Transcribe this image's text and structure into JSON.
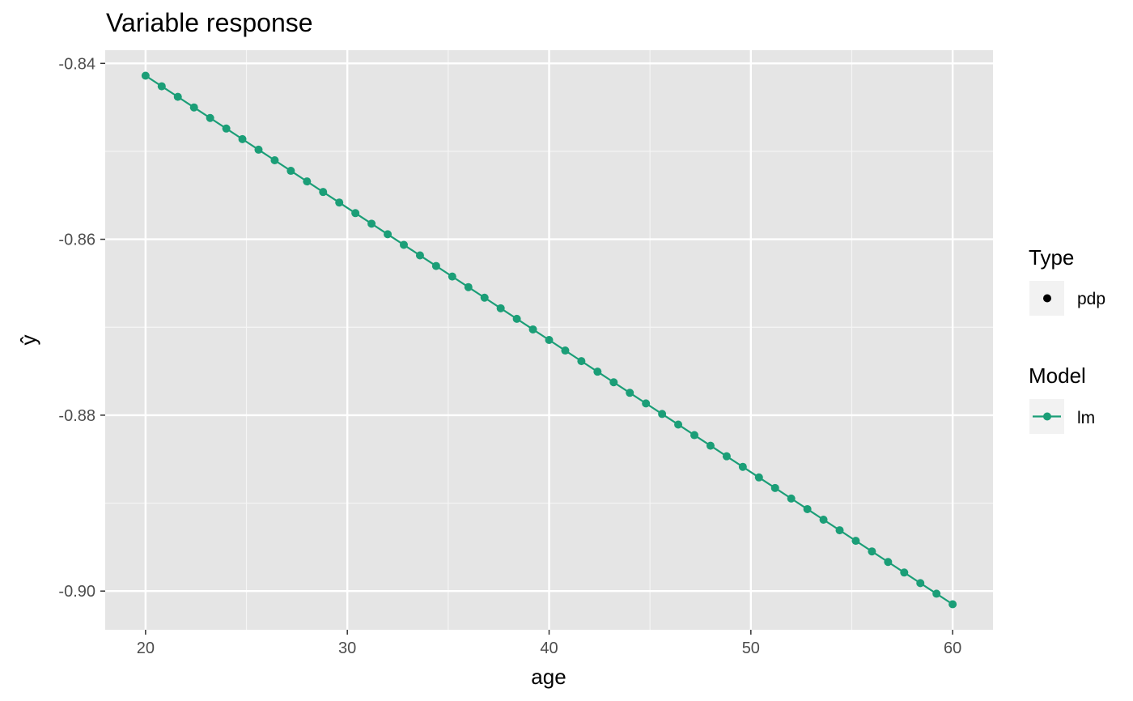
{
  "chart_data": {
    "type": "line",
    "title": "Variable response",
    "xlabel": "age",
    "ylabel": "ŷ",
    "xlim": [
      18.0,
      62.0
    ],
    "ylim": [
      -0.9044,
      -0.8385
    ],
    "x_ticks": [
      20,
      30,
      40,
      50,
      60
    ],
    "x_tick_labels": [
      "20",
      "30",
      "40",
      "50",
      "60"
    ],
    "y_ticks": [
      -0.84,
      -0.86,
      -0.88,
      -0.9
    ],
    "y_tick_labels": [
      "-0.84",
      "-0.86",
      "-0.88",
      "-0.90"
    ],
    "x_minor_ticks": [
      25,
      35,
      45,
      55
    ],
    "y_minor_ticks": [
      -0.85,
      -0.87,
      -0.89
    ],
    "grid": true,
    "panel_background": "#e5e5e5",
    "series": [
      {
        "name": "lm",
        "color": "#1b9e77",
        "x_start": 20,
        "x_end": 60,
        "n_points": 51,
        "y_start": -0.8414,
        "y_end": -0.9015
      }
    ],
    "legend": {
      "position": "right",
      "groups": [
        {
          "title": "Type",
          "entries": [
            {
              "label": "pdp",
              "symbol": "point",
              "color": "#000000"
            }
          ]
        },
        {
          "title": "Model",
          "entries": [
            {
              "label": "lm",
              "symbol": "line-point",
              "color": "#1b9e77"
            }
          ]
        }
      ]
    }
  }
}
